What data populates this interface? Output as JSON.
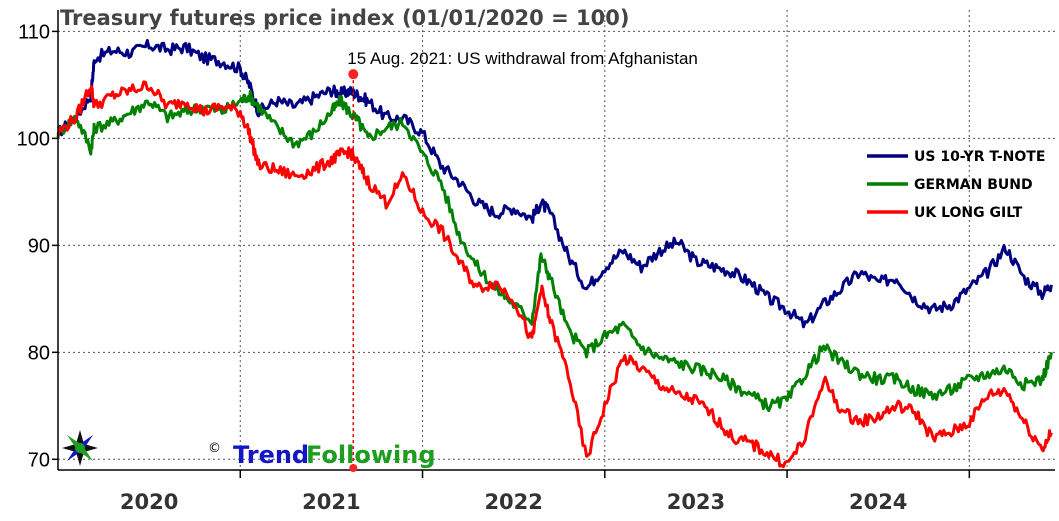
{
  "chart_data": {
    "type": "line",
    "title": "Treasury futures price index (01/01/2020 = 100)",
    "ylim": [
      69,
      112
    ],
    "xlim": [
      2019.5,
      2024.97
    ],
    "yticks": [
      70,
      80,
      90,
      100,
      110
    ],
    "xtick_labels": [
      {
        "label": "2020",
        "x": 2020.0
      },
      {
        "label": "2021",
        "x": 2021.0
      },
      {
        "label": "2022",
        "x": 2022.0
      },
      {
        "label": "2023",
        "x": 2023.0
      },
      {
        "label": "2024",
        "x": 2024.0
      }
    ],
    "year_boundaries": [
      2020.5,
      2021.5,
      2022.5,
      2023.5,
      2024.5
    ],
    "grid": true,
    "legend_position": "right",
    "annotation": {
      "text": "15 Aug. 2021: US withdrawal from Afghanistan",
      "x": 2021.12,
      "y_top": 106,
      "y_bottom": 69
    },
    "series": [
      {
        "name": "US 10-YR T-NOTE",
        "color": "#000080",
        "x": [
          2019.5,
          2019.6,
          2019.68,
          2019.7,
          2019.8,
          2019.9,
          2020.0,
          2020.1,
          2020.2,
          2020.3,
          2020.4,
          2020.5,
          2020.55,
          2020.6,
          2020.7,
          2020.8,
          2020.9,
          2021.0,
          2021.05,
          2021.1,
          2021.15,
          2021.2,
          2021.3,
          2021.4,
          2021.5,
          2021.6,
          2021.7,
          2021.8,
          2021.9,
          2022.0,
          2022.1,
          2022.15,
          2022.2,
          2022.3,
          2022.4,
          2022.5,
          2022.6,
          2022.7,
          2022.8,
          2022.9,
          2023.0,
          2023.1,
          2023.2,
          2023.3,
          2023.4,
          2023.5,
          2023.6,
          2023.7,
          2023.8,
          2023.9,
          2024.0,
          2024.1,
          2024.2,
          2024.3,
          2024.4,
          2024.5,
          2024.6,
          2024.7,
          2024.8,
          2024.9,
          2024.95
        ],
        "values": [
          100.5,
          102.0,
          104.0,
          107.5,
          108.2,
          108.0,
          108.7,
          108.3,
          108.5,
          107.5,
          107.2,
          106.5,
          105.0,
          102.5,
          103.5,
          103.0,
          103.8,
          104.5,
          104.2,
          104.4,
          104.0,
          103.5,
          102.0,
          101.8,
          100.5,
          97.5,
          96.0,
          94.0,
          93.0,
          93.5,
          92.5,
          94.0,
          93.0,
          89.0,
          86.0,
          88.0,
          89.5,
          88.0,
          89.5,
          90.3,
          88.5,
          88.0,
          87.5,
          86.5,
          85.0,
          84.0,
          82.5,
          84.5,
          86.0,
          87.5,
          86.5,
          87.0,
          85.0,
          84.0,
          84.5,
          86.0,
          87.5,
          89.8,
          87.0,
          85.5,
          86.3
        ]
      },
      {
        "name": "GERMAN BUND",
        "color": "#008000",
        "x": [
          2019.5,
          2019.6,
          2019.68,
          2019.7,
          2019.8,
          2019.9,
          2020.0,
          2020.1,
          2020.2,
          2020.3,
          2020.4,
          2020.5,
          2020.55,
          2020.6,
          2020.7,
          2020.8,
          2020.9,
          2021.0,
          2021.05,
          2021.1,
          2021.15,
          2021.2,
          2021.3,
          2021.4,
          2021.5,
          2021.6,
          2021.7,
          2021.8,
          2021.9,
          2022.0,
          2022.1,
          2022.15,
          2022.2,
          2022.3,
          2022.4,
          2022.5,
          2022.6,
          2022.7,
          2022.8,
          2022.9,
          2023.0,
          2023.1,
          2023.2,
          2023.3,
          2023.4,
          2023.5,
          2023.6,
          2023.7,
          2023.8,
          2023.9,
          2024.0,
          2024.1,
          2024.2,
          2024.3,
          2024.4,
          2024.5,
          2024.6,
          2024.7,
          2024.8,
          2024.9,
          2024.95
        ],
        "values": [
          100.5,
          102.0,
          99.0,
          101.0,
          101.5,
          102.5,
          103.5,
          102.0,
          102.5,
          103.0,
          102.5,
          103.5,
          104.0,
          103.0,
          101.0,
          99.5,
          100.5,
          102.5,
          103.5,
          102.5,
          101.5,
          100.0,
          101.0,
          101.5,
          98.5,
          96.0,
          91.0,
          88.0,
          86.0,
          84.5,
          83.0,
          89.0,
          87.0,
          82.0,
          80.0,
          81.5,
          82.5,
          80.5,
          79.5,
          79.0,
          78.5,
          78.0,
          77.0,
          76.0,
          75.0,
          75.5,
          78.0,
          80.5,
          79.0,
          78.0,
          77.5,
          77.5,
          76.5,
          76.0,
          76.5,
          77.5,
          78.0,
          78.5,
          77.0,
          77.5,
          80.0
        ]
      },
      {
        "name": "UK LONG GILT",
        "color": "#ff0000",
        "x": [
          2019.5,
          2019.6,
          2019.68,
          2019.7,
          2019.8,
          2019.9,
          2020.0,
          2020.1,
          2020.2,
          2020.3,
          2020.4,
          2020.5,
          2020.55,
          2020.6,
          2020.7,
          2020.8,
          2020.9,
          2021.0,
          2021.05,
          2021.1,
          2021.15,
          2021.2,
          2021.3,
          2021.4,
          2021.5,
          2021.6,
          2021.7,
          2021.8,
          2021.9,
          2022.0,
          2022.1,
          2022.15,
          2022.2,
          2022.3,
          2022.4,
          2022.5,
          2022.6,
          2022.7,
          2022.8,
          2022.9,
          2023.0,
          2023.1,
          2023.2,
          2023.3,
          2023.4,
          2023.5,
          2023.6,
          2023.7,
          2023.8,
          2023.9,
          2024.0,
          2024.1,
          2024.2,
          2024.3,
          2024.4,
          2024.5,
          2024.6,
          2024.7,
          2024.8,
          2024.9,
          2024.95
        ],
        "values": [
          100.5,
          102.0,
          105.0,
          103.0,
          104.0,
          104.5,
          105.0,
          103.0,
          103.5,
          102.5,
          103.0,
          102.5,
          100.5,
          97.5,
          97.0,
          96.5,
          97.0,
          98.0,
          98.5,
          98.8,
          97.5,
          96.0,
          94.0,
          96.5,
          93.0,
          91.5,
          88.5,
          86.0,
          86.5,
          85.0,
          81.0,
          86.0,
          83.0,
          78.0,
          70.0,
          75.0,
          79.5,
          78.5,
          77.0,
          76.0,
          75.5,
          74.0,
          72.0,
          71.5,
          70.5,
          69.5,
          72.0,
          77.5,
          74.5,
          73.5,
          74.0,
          75.0,
          74.5,
          72.0,
          72.5,
          73.5,
          76.0,
          76.5,
          73.5,
          71.0,
          72.5
        ]
      }
    ]
  },
  "logo": {
    "copyright": "©",
    "part1": "Trend",
    "part2": " Following"
  }
}
